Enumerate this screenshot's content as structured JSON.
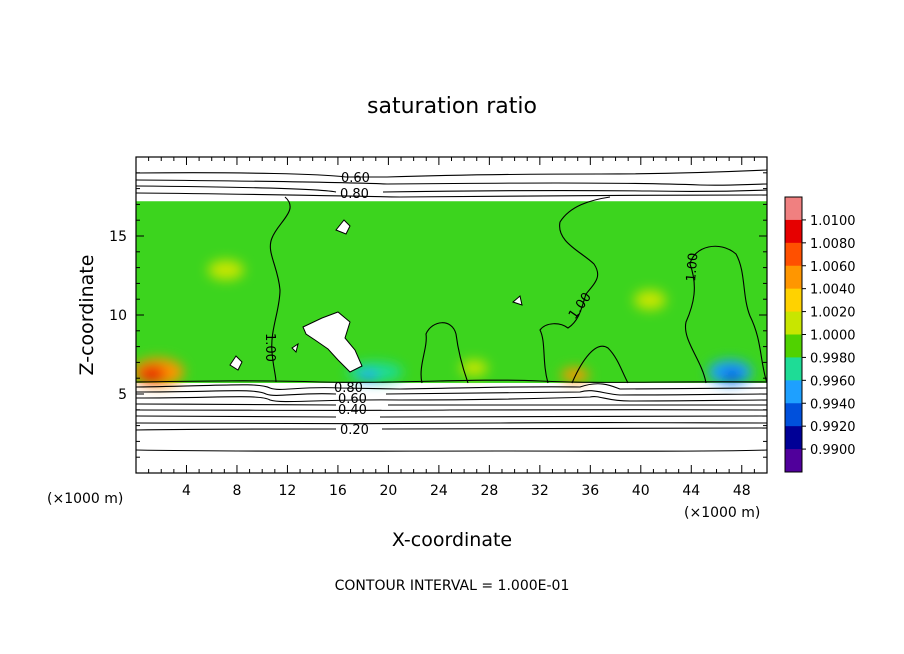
{
  "chart_data": {
    "type": "heatmap",
    "title": "saturation ratio",
    "xlabel": "X-coordinate",
    "ylabel": "Z-coordinate",
    "x_unit_label": "(×1000 m)",
    "y_unit_label": "(×1000 m)",
    "xlim": [
      0,
      50
    ],
    "ylim": [
      0,
      20
    ],
    "x_ticks": [
      "4",
      "8",
      "12",
      "16",
      "20",
      "24",
      "28",
      "32",
      "36",
      "40",
      "44",
      "48"
    ],
    "y_ticks": [
      "5",
      "10",
      "15"
    ],
    "contour_interval_text": "CONTOUR INTERVAL = 1.000E-01",
    "contour_labels": [
      "0.60",
      "0.80",
      "1.00",
      "1.00",
      "1.00",
      "1.00",
      "0.80",
      "0.60",
      "0.40",
      "0.20"
    ],
    "colorbar": {
      "ticks": [
        "1.0100",
        "1.0080",
        "1.0060",
        "1.0040",
        "1.0020",
        "1.0000",
        "0.9980",
        "0.9960",
        "0.9940",
        "0.9920",
        "0.9900"
      ],
      "colors": [
        "#f08080",
        "#e60000",
        "#ff5000",
        "#ff9600",
        "#ffd200",
        "#c8e600",
        "#50d200",
        "#1edc96",
        "#1ea0ff",
        "#0050dc",
        "#000096",
        "#50009b"
      ]
    },
    "colored_region": {
      "x": [
        0,
        50
      ],
      "y": [
        5.7,
        17.2
      ]
    },
    "background_color": "#3cd41e",
    "grid": false,
    "legend": "colorbar-right"
  }
}
